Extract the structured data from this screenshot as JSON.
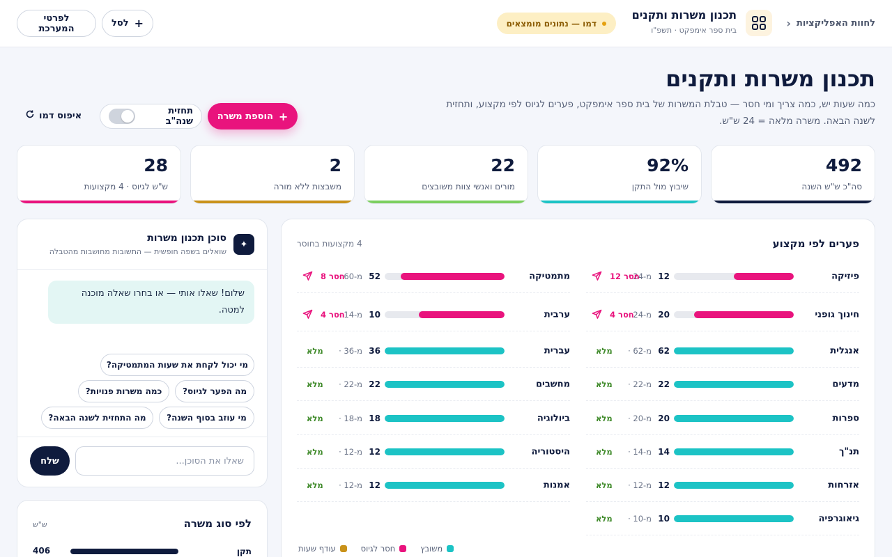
{
  "topbar": {
    "back_label": "לחוות האפליקציות",
    "app_title": "תכנון משרות ותקנים",
    "app_subtitle": "בית ספר אימפקט · תשפ\"ו",
    "demo_badge": "דמו — נתונים מומצאים",
    "cart_label": "לסל",
    "details_label": "לפרטי המערכת"
  },
  "header": {
    "title": "תכנון משרות ותקנים",
    "description": "כמה שעות יש, כמה צריך ומי חסר — טבלת המשרות של בית ספר אימפקט, פערים לגיוס לפי מקצוע, ותחזית לשנה הבאה. משרה מלאה = 24 ש\"ש.",
    "add_post_label": "הוספת משרה",
    "forecast_toggle_label": "תחזית שנה\"ב",
    "forecast_toggle_on": false,
    "reset_label": "איפוס דמו"
  },
  "kpis": [
    {
      "value": "492",
      "label": "סה\"כ ש\"ש השנה",
      "color": "#0f1b3d"
    },
    {
      "value": "92%",
      "label": "שיבוץ מול התקן",
      "color": "#1cc3c5"
    },
    {
      "value": "22",
      "label": "מורים ואנשי צוות משובצים",
      "color": "#7ccf5f"
    },
    {
      "value": "2",
      "label": "משבצות ללא מורה",
      "color": "#c9921a"
    },
    {
      "value": "28",
      "label": "ש\"ש לגיוס · 4 מקצועות",
      "color": "#e9137d"
    }
  ],
  "subjects_panel": {
    "title": "פערים לפי מקצוע",
    "short_count": "4 מקצועות בחוסר",
    "right_column": [
      {
        "name": "פיזיקה",
        "assigned": 12,
        "required": "מ-24",
        "status": "חסר 12",
        "short": true
      },
      {
        "name": "חינוך גופני",
        "assigned": 20,
        "required": "מ-24",
        "status": "חסר 4",
        "short": true
      },
      {
        "name": "אנגלית",
        "assigned": 62,
        "required": "מ-62",
        "status": "מלא",
        "short": false
      },
      {
        "name": "מדעים",
        "assigned": 22,
        "required": "מ-22",
        "status": "מלא",
        "short": false
      },
      {
        "name": "ספרות",
        "assigned": 20,
        "required": "מ-20",
        "status": "מלא",
        "short": false
      },
      {
        "name": "תנ\"ך",
        "assigned": 14,
        "required": "מ-14",
        "status": "מלא",
        "short": false
      },
      {
        "name": "אזרחות",
        "assigned": 12,
        "required": "מ-12",
        "status": "מלא",
        "short": false
      },
      {
        "name": "גיאוגרפיה",
        "assigned": 10,
        "required": "מ-10",
        "status": "מלא",
        "short": false
      }
    ],
    "left_column": [
      {
        "name": "מתמטיקה",
        "assigned": 52,
        "required": "מ-60",
        "status": "חסר 8",
        "short": true
      },
      {
        "name": "ערבית",
        "assigned": 10,
        "required": "מ-14",
        "status": "חסר 4",
        "short": true
      },
      {
        "name": "עברית",
        "assigned": 36,
        "required": "מ-36",
        "status": "מלא",
        "short": false
      },
      {
        "name": "מחשבים",
        "assigned": 22,
        "required": "מ-22",
        "status": "מלא",
        "short": false
      },
      {
        "name": "ביולוגיה",
        "assigned": 18,
        "required": "מ-18",
        "status": "מלא",
        "short": false
      },
      {
        "name": "היסטוריה",
        "assigned": 12,
        "required": "מ-12",
        "status": "מלא",
        "short": false
      },
      {
        "name": "אמנות",
        "assigned": 12,
        "required": "מ-12",
        "status": "מלא",
        "short": false
      }
    ],
    "legend": [
      {
        "label": "משובץ",
        "color": "#1cc3c5"
      },
      {
        "label": "חסר לגיוס",
        "color": "#e9137d"
      },
      {
        "label": "עודף שעות",
        "color": "#c9921a"
      }
    ]
  },
  "agent": {
    "title": "סוכן תכנון משרות",
    "subtitle": "שואלים בשפה חופשית — התשובות מחושבות מהטבלה",
    "greeting": "שלום! שאלו אותי — או בחרו שאלה מוכנה למטה.",
    "chips": [
      "מי יכול לקחת את שעות המתמטיקה?",
      "מה הפער לגיוס?",
      "כמה משרות פנויות?",
      "מי עוזב בסוף השנה?",
      "מה התחזית לשנה הבאה?"
    ],
    "input_placeholder": "שאלו את הסוכן...",
    "send_label": "שלח"
  },
  "post_type": {
    "title": "לפי סוג משרה",
    "unit": "ש\"ש",
    "rows": [
      {
        "label": "תקן",
        "value": 406,
        "fraction": 1.0
      }
    ]
  },
  "colors": {
    "navy": "#0f1b3d",
    "teal": "#1cc3c5",
    "pink": "#e9137d",
    "gold": "#c9921a",
    "green_ok": "#3f8a2a"
  }
}
